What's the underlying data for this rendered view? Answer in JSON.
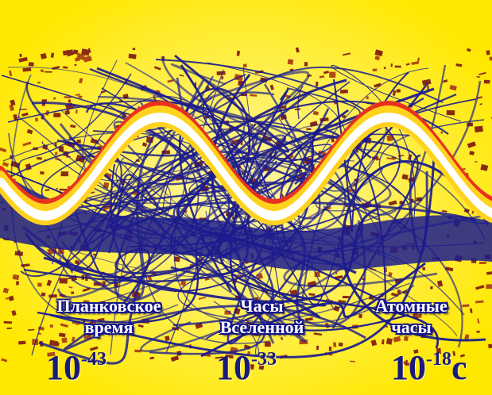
{
  "labels": [
    {
      "line1": "Планковское",
      "line2": "время",
      "base": "10",
      "exponent": "-43",
      "unit": ""
    },
    {
      "line1": "Часы",
      "line2": "Вселенной",
      "base": "10",
      "exponent": "-33",
      "unit": ""
    },
    {
      "line1": "Атомные",
      "line2": "часы",
      "base": "10",
      "exponent": "-18",
      "unit": "с"
    }
  ],
  "colors": {
    "background": "#fff200",
    "scribble": "#1c1c8e",
    "wave_outer": "#e8321e",
    "wave_mid": "#ffd21e",
    "wave_core": "#ffffff",
    "speckle": "#8a2a10"
  }
}
